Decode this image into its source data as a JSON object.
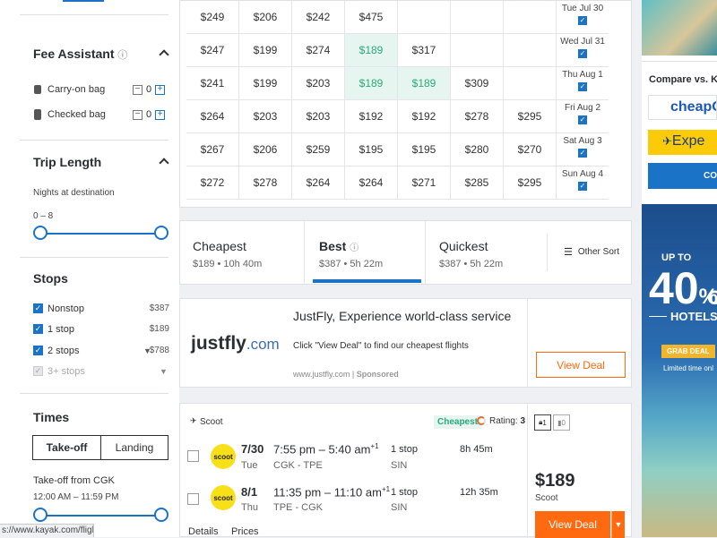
{
  "sidebar": {
    "fee": {
      "title": "Fee Assistant",
      "info": "ⓘ",
      "bags": [
        {
          "label": "Carry-on bag",
          "count": "0"
        },
        {
          "label": "Checked bag",
          "count": "0"
        }
      ]
    },
    "trip": {
      "title": "Trip Length",
      "subtitle": "Nights at destination",
      "range": "0 – 8"
    },
    "stops": {
      "title": "Stops",
      "items": [
        {
          "label": "Nonstop",
          "price": "$387"
        },
        {
          "label": "1 stop",
          "price": "$189"
        },
        {
          "label": "2 stops",
          "price": "$788"
        },
        {
          "label": "3+ stops",
          "price": ""
        }
      ]
    },
    "times": {
      "title": "Times",
      "tabs": [
        "Take-off",
        "Landing"
      ],
      "takeoff_label": "Take-off from CGK",
      "takeoff_range": "12:00 AM – 11:59 PM"
    }
  },
  "grid": {
    "rows": [
      {
        "cells": [
          "$249",
          "$206",
          "$242",
          "$475",
          "",
          "",
          ""
        ],
        "date": "Tue Jul 30"
      },
      {
        "cells": [
          "$247",
          "$199",
          "$274",
          "$189",
          "$317",
          "",
          ""
        ],
        "date": "Wed Jul 31"
      },
      {
        "cells": [
          "$241",
          "$199",
          "$203",
          "$189",
          "$189",
          "$309",
          ""
        ],
        "date": "Thu Aug 1"
      },
      {
        "cells": [
          "$264",
          "$203",
          "$203",
          "$192",
          "$192",
          "$278",
          "$295"
        ],
        "date": "Fri Aug 2"
      },
      {
        "cells": [
          "$267",
          "$206",
          "$259",
          "$195",
          "$195",
          "$280",
          "$270"
        ],
        "date": "Sat Aug 3"
      },
      {
        "cells": [
          "$272",
          "$278",
          "$264",
          "$264",
          "$271",
          "$285",
          "$295"
        ],
        "date": "Sun Aug 4"
      }
    ]
  },
  "sort": {
    "tabs": [
      {
        "title": "Cheapest",
        "sub": "$189 • 10h 40m"
      },
      {
        "title": "Best",
        "sub": "$387 • 5h 22m"
      },
      {
        "title": "Quickest",
        "sub": "$387 • 5h 22m"
      }
    ],
    "other": "Other Sort"
  },
  "ad": {
    "logo_a": "justfly",
    "logo_b": ".com",
    "headline": "JustFly, Experience world-class service",
    "body": "Click \"View Deal\" to find our cheapest flights",
    "url": "www.justfly.com",
    "sponsored": "Sponsored",
    "cta": "View Deal"
  },
  "result": {
    "airline": "Scoot",
    "badge": "Cheapest",
    "rating_label": "Rating:",
    "rating": "3",
    "bag1": "1",
    "bag2": "0",
    "legs": [
      {
        "date": "7/30",
        "day": "Tue",
        "dep": "7:55 pm",
        "arr": "5:40 am",
        "plus": "+1",
        "route": "CGK - TPE",
        "stops": "1 stop",
        "via": "SIN",
        "duration": "8h 45m"
      },
      {
        "date": "8/1",
        "day": "Thu",
        "dep": "11:35 pm",
        "arr": "11:10 am",
        "plus": "+1",
        "route": "TPE - CGK",
        "stops": "1 stop",
        "via": "SIN",
        "duration": "12h 35m"
      }
    ],
    "logo_text": "scoot",
    "price": "$189",
    "price_airline": "Scoot",
    "cta": "View Deal",
    "details": "Details",
    "prices": "Prices"
  },
  "right": {
    "compare": "Compare vs. KA",
    "cheapo": "cheapOa",
    "expedia": "Expe",
    "btn": "CO",
    "up_to": "UP TO",
    "big": "40",
    "big2": "%",
    "o": "O",
    "hotels": "HOTELS",
    "grab": "GRAB DEAL",
    "limited": "Limited time onl"
  },
  "status": {
    "url": "s://www.kayak.com/flights"
  }
}
